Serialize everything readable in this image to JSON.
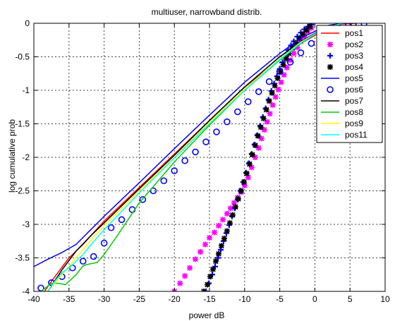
{
  "chart_data": {
    "type": "line",
    "title": "multiuser, narrowband distrib.",
    "xlabel": "power dB",
    "ylabel": "log cumulative prob",
    "xlim": [
      -40,
      10
    ],
    "ylim": [
      -4,
      0
    ],
    "xticks": [
      -40,
      -35,
      -30,
      -25,
      -20,
      -15,
      -10,
      -5,
      0,
      5,
      10
    ],
    "yticks": [
      0,
      -0.5,
      -1,
      -1.5,
      -2,
      -2.5,
      -3,
      -3.5,
      -4
    ],
    "grid": true,
    "legend_position": "top-right",
    "series": [
      {
        "name": "pos1",
        "style": "line",
        "color": "#ff0000",
        "x": [
          -38.5,
          -37,
          -35,
          -33,
          -30,
          -25,
          -20,
          -15,
          -10,
          -5,
          -2,
          0,
          2,
          4,
          6
        ],
        "y": [
          -4,
          -3.78,
          -3.5,
          -3.3,
          -2.95,
          -2.45,
          -1.95,
          -1.45,
          -0.95,
          -0.55,
          -0.3,
          -0.18,
          -0.05,
          -0.01,
          0
        ]
      },
      {
        "name": "pos2",
        "style": "marker",
        "marker": "asterisk",
        "color": "#ff00ff",
        "x": [
          -20,
          -19.2,
          -18.5,
          -17.8,
          -17,
          -16.3,
          -15.6,
          -15,
          -14.3,
          -13.7,
          -13.1,
          -12.5,
          -12,
          -11.5,
          -11,
          -10.5,
          -10,
          -9.5,
          -9,
          -8.5,
          -8,
          -7.6,
          -7.2,
          -6.8,
          -6.4,
          -6,
          -5.6,
          -5.2,
          -4.8,
          -4.4,
          -4,
          -3.5,
          -3,
          -2.5,
          -2,
          -1.5,
          -1,
          -0.5
        ],
        "y": [
          -4,
          -3.88,
          -3.77,
          -3.65,
          -3.52,
          -3.41,
          -3.3,
          -3.2,
          -3.12,
          -3.02,
          -2.93,
          -2.84,
          -2.76,
          -2.68,
          -2.6,
          -2.52,
          -2.42,
          -2.3,
          -2.15,
          -2.0,
          -1.86,
          -1.72,
          -1.59,
          -1.47,
          -1.35,
          -1.22,
          -1.1,
          -0.99,
          -0.88,
          -0.77,
          -0.66,
          -0.55,
          -0.45,
          -0.36,
          -0.27,
          -0.2,
          -0.13,
          -0.07
        ]
      },
      {
        "name": "pos3",
        "style": "marker",
        "marker": "plus",
        "color": "#0000ff",
        "x": [
          -15.5,
          -15.1,
          -14.6,
          -14.2,
          -13.8,
          -13.4,
          -13,
          -12.6,
          -12.2,
          -11.8,
          -11.4,
          -11,
          -10.6,
          -10.2,
          -9.8,
          -9.4,
          -9,
          -8.6,
          -8.2,
          -7.8,
          -7.4,
          -7,
          -6.6,
          -6.2,
          -5.8,
          -5.4,
          -5,
          -4.6,
          -4.2,
          -3.8,
          -3.4,
          -3,
          -2.5,
          -2,
          -1.5,
          -1,
          -0.5
        ],
        "y": [
          -4,
          -3.88,
          -3.75,
          -3.63,
          -3.5,
          -3.38,
          -3.25,
          -3.13,
          -3.01,
          -2.88,
          -2.76,
          -2.63,
          -2.5,
          -2.37,
          -2.23,
          -2.09,
          -1.95,
          -1.81,
          -1.67,
          -1.53,
          -1.4,
          -1.27,
          -1.14,
          -1.01,
          -0.9,
          -0.79,
          -0.68,
          -0.58,
          -0.49,
          -0.4,
          -0.33,
          -0.27,
          -0.2,
          -0.14,
          -0.09,
          -0.05,
          -0.02
        ]
      },
      {
        "name": "pos4",
        "style": "marker",
        "marker": "asterisk",
        "color": "#000000",
        "x": [
          -15.8,
          -15.3,
          -14.9,
          -14.5,
          -14.1,
          -13.7,
          -13.3,
          -12.9,
          -12.5,
          -12.1,
          -11.7,
          -11.3,
          -10.9,
          -10.5,
          -10.1,
          -9.7,
          -9.3,
          -8.9,
          -8.5,
          -8.1,
          -7.7,
          -7.3,
          -6.9,
          -6.5,
          -6.1,
          -5.7,
          -5.3,
          -4.9,
          -4.5,
          -4.1,
          -3.7,
          -3.2,
          -2.7,
          -2.2,
          -1.7,
          -1.2,
          -0.7
        ],
        "y": [
          -4,
          -3.9,
          -3.78,
          -3.67,
          -3.55,
          -3.44,
          -3.32,
          -3.21,
          -3.1,
          -2.98,
          -2.86,
          -2.74,
          -2.62,
          -2.5,
          -2.37,
          -2.24,
          -2.1,
          -1.96,
          -1.82,
          -1.68,
          -1.55,
          -1.42,
          -1.29,
          -1.16,
          -1.04,
          -0.93,
          -0.82,
          -0.72,
          -0.62,
          -0.53,
          -0.45,
          -0.37,
          -0.29,
          -0.22,
          -0.16,
          -0.1,
          -0.05
        ]
      },
      {
        "name": "pos5",
        "style": "line",
        "color": "#0000ff",
        "x": [
          -40,
          -38,
          -36,
          -34,
          -30,
          -25,
          -20,
          -15,
          -10,
          -5,
          -2,
          0,
          2,
          4
        ],
        "y": [
          -3.63,
          -3.52,
          -3.42,
          -3.3,
          -2.88,
          -2.38,
          -1.87,
          -1.37,
          -0.88,
          -0.45,
          -0.22,
          -0.12,
          -0.03,
          0
        ]
      },
      {
        "name": "pos6",
        "style": "marker",
        "marker": "circle",
        "color": "#0000ff",
        "x": [
          -39,
          -37.5,
          -36,
          -34.5,
          -33,
          -31.5,
          -30,
          -29,
          -27.5,
          -26,
          -24.5,
          -23,
          -21.5,
          -20,
          -18.5,
          -17,
          -15.5,
          -14,
          -12.5,
          -11,
          -9.5,
          -8,
          -6.5,
          -5,
          -3.5,
          -2,
          -0.5,
          1,
          2.5,
          4,
          5.5,
          7
        ],
        "y": [
          -3.95,
          -3.87,
          -3.78,
          -3.65,
          -3.55,
          -3.48,
          -3.28,
          -3.05,
          -2.93,
          -2.78,
          -2.63,
          -2.5,
          -2.35,
          -2.2,
          -2.05,
          -1.92,
          -1.77,
          -1.62,
          -1.47,
          -1.32,
          -1.17,
          -1.02,
          -0.87,
          -0.72,
          -0.58,
          -0.44,
          -0.3,
          -0.18,
          -0.09,
          -0.03,
          0,
          0
        ]
      },
      {
        "name": "pos7",
        "style": "line",
        "color": "#000000",
        "x": [
          -38,
          -36,
          -34,
          -32,
          -30,
          -25,
          -20,
          -15,
          -10,
          -5,
          -2,
          0,
          2,
          4
        ],
        "y": [
          -4,
          -3.68,
          -3.4,
          -3.18,
          -2.98,
          -2.47,
          -1.97,
          -1.45,
          -0.95,
          -0.5,
          -0.27,
          -0.15,
          -0.04,
          0
        ]
      },
      {
        "name": "pos8",
        "style": "line",
        "color": "#00cc00",
        "x": [
          -39,
          -38,
          -37.5,
          -36.5,
          -35.5,
          -34,
          -33,
          -32.5,
          -31,
          -30,
          -29,
          -28,
          -25,
          -20,
          -15,
          -10,
          -5,
          -2,
          0,
          2,
          4
        ],
        "y": [
          -4,
          -3.92,
          -3.88,
          -3.88,
          -3.9,
          -3.75,
          -3.62,
          -3.6,
          -3.57,
          -3.45,
          -3.3,
          -3.15,
          -2.68,
          -2.07,
          -1.52,
          -1.0,
          -0.55,
          -0.3,
          -0.16,
          -0.05,
          0
        ]
      },
      {
        "name": "pos9",
        "style": "line",
        "color": "#ffff00",
        "x": [
          -38,
          -36,
          -34,
          -32,
          -30,
          -25,
          -20,
          -15,
          -10,
          -5,
          -2,
          0,
          2,
          4
        ],
        "y": [
          -4,
          -3.75,
          -3.5,
          -3.25,
          -3.02,
          -2.5,
          -2.0,
          -1.48,
          -0.98,
          -0.53,
          -0.28,
          -0.16,
          -0.05,
          0
        ]
      },
      {
        "name": "pos11",
        "style": "line",
        "color": "#00ffff",
        "x": [
          -38,
          -37,
          -36,
          -35,
          -34,
          -33,
          -32,
          -30,
          -25,
          -20,
          -15,
          -10,
          -5,
          -2,
          0,
          2,
          4
        ],
        "y": [
          -4,
          -3.85,
          -3.72,
          -3.65,
          -3.55,
          -3.45,
          -3.32,
          -3.08,
          -2.53,
          -2.01,
          -1.5,
          -1.0,
          -0.54,
          -0.29,
          -0.16,
          -0.05,
          0
        ]
      }
    ]
  }
}
